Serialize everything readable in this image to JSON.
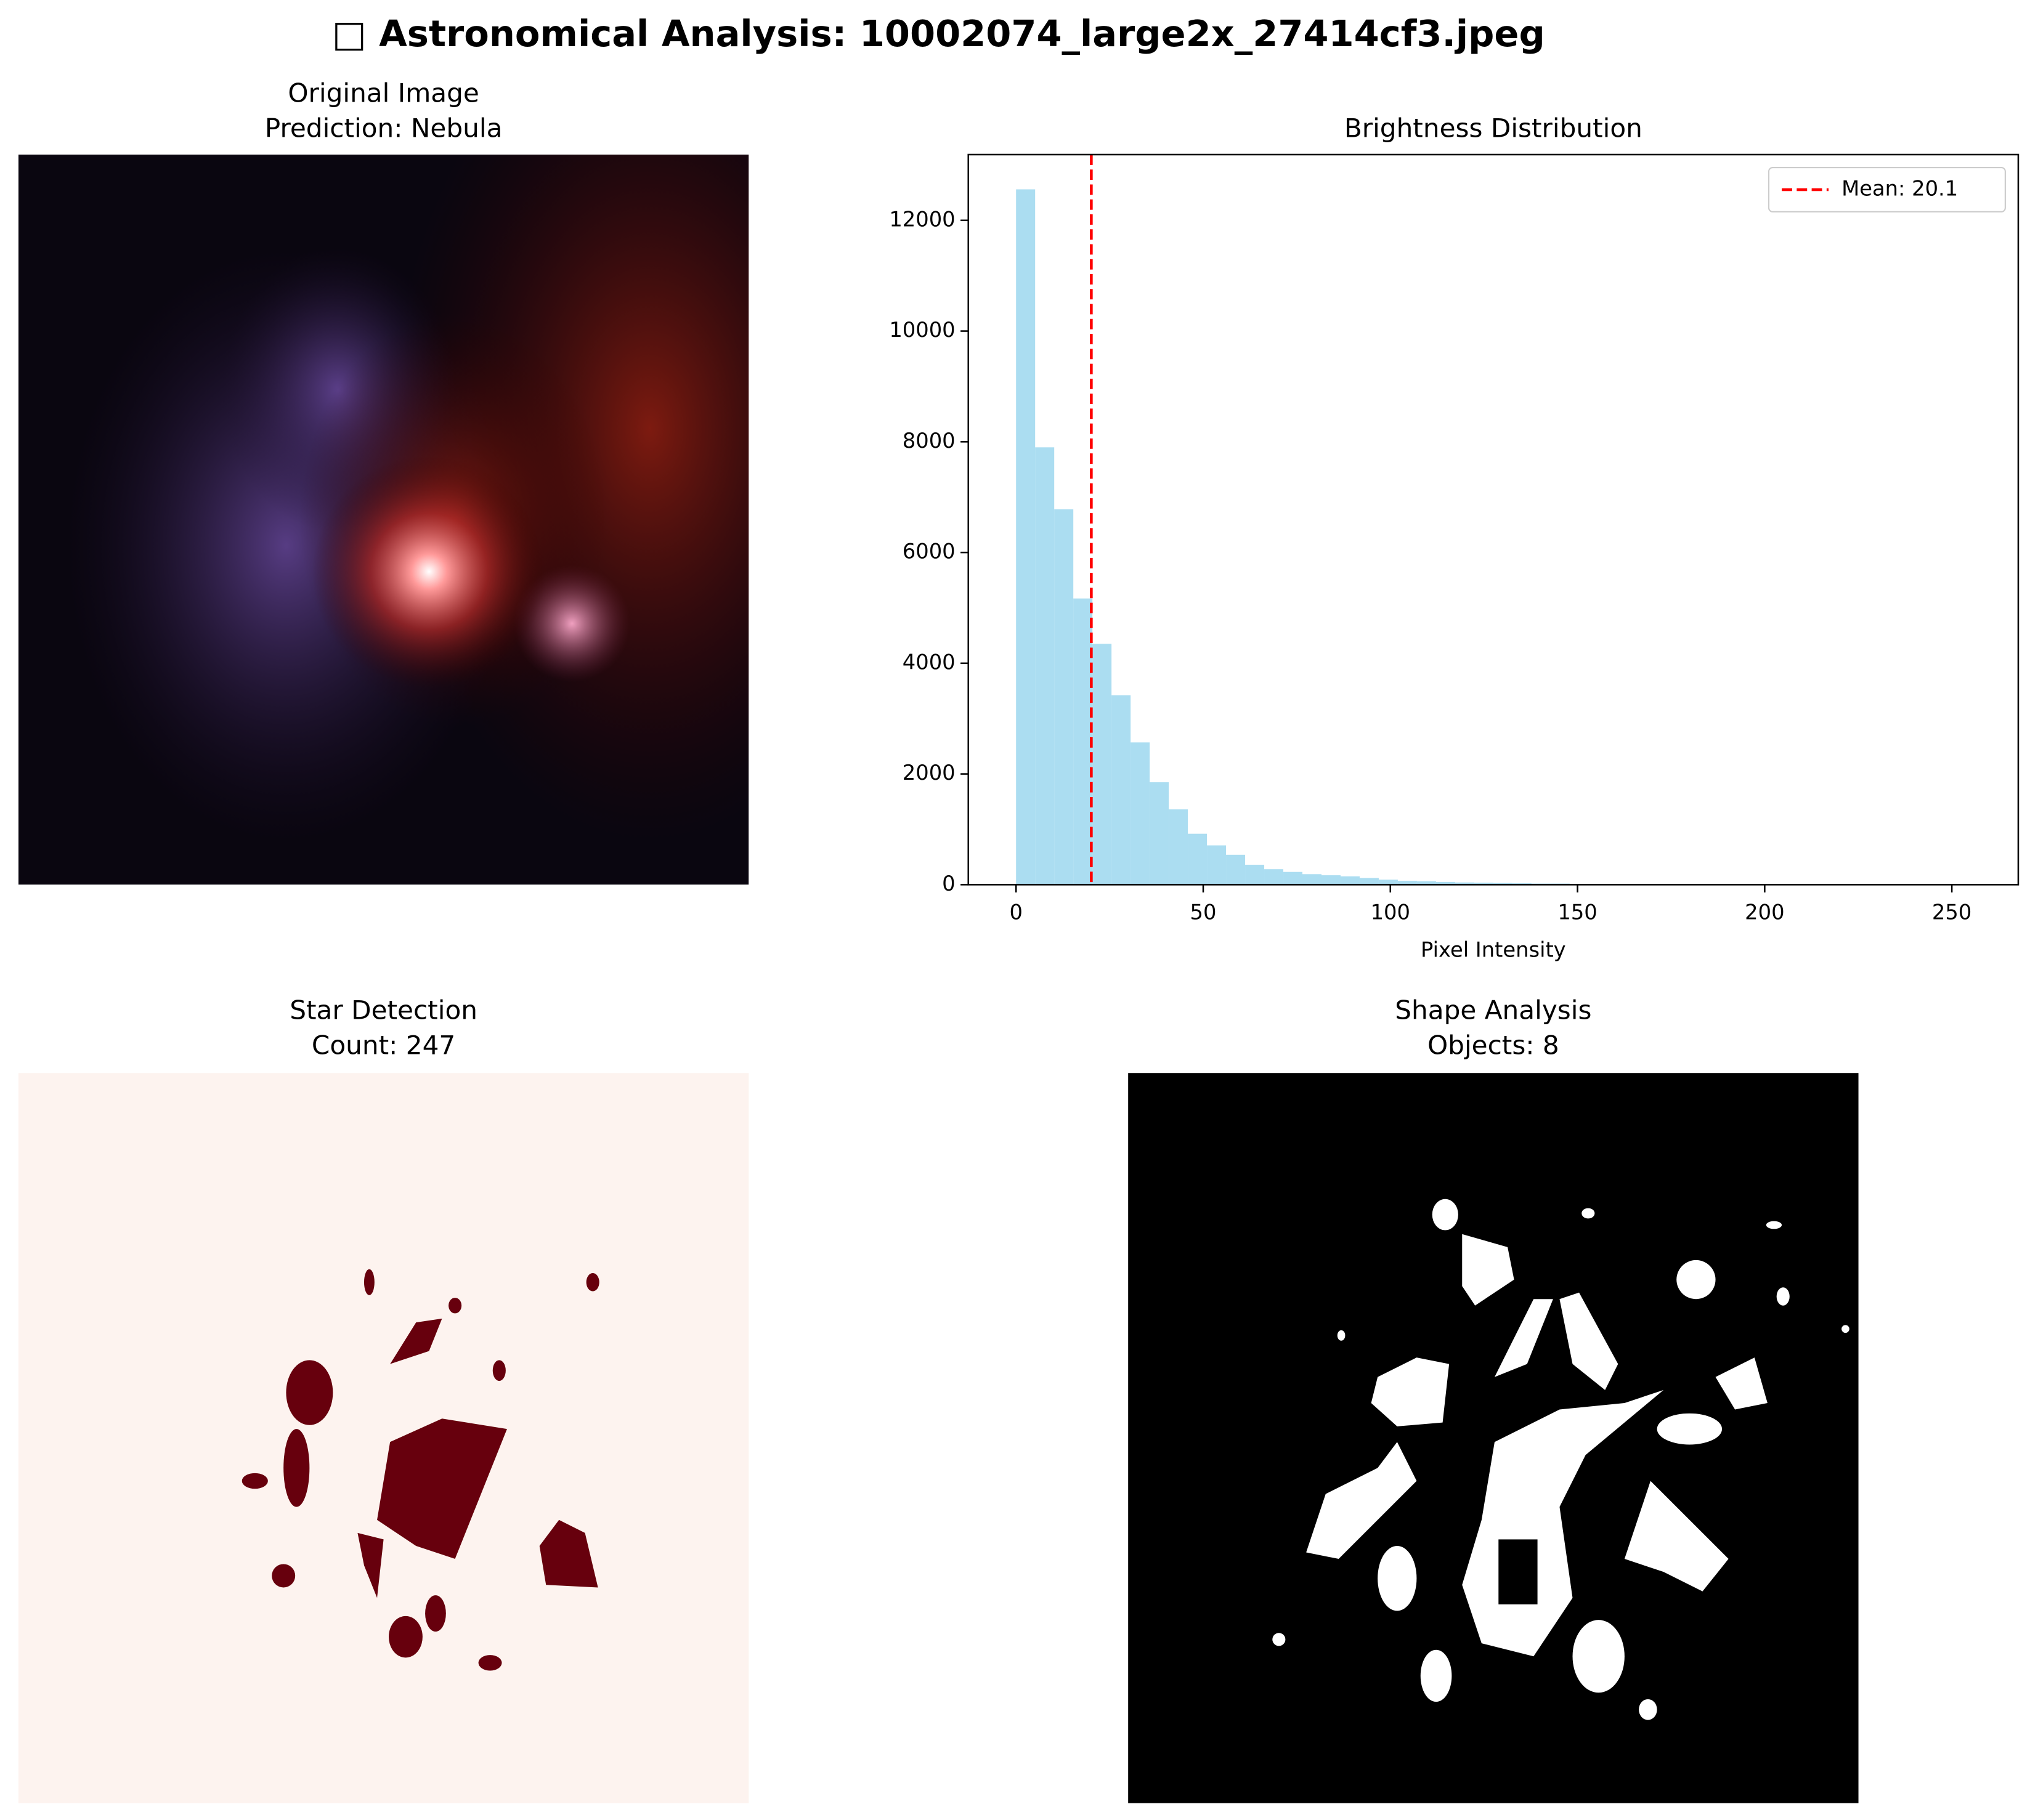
{
  "title": "□ Astronomical Analysis: 10002074_large2x_27414cf3.jpeg",
  "panels": [
    {
      "title": "Original Image",
      "subtitle": "Prediction: Nebula"
    },
    {
      "title": "Star Detection",
      "subtitle": "Count: 247"
    },
    {
      "title": "Shape Analysis",
      "subtitle": "Objects: 8"
    }
  ],
  "chart_data": {
    "type": "histogram",
    "title": "Brightness Distribution",
    "x_label": "Pixel Intensity",
    "bins": [
      0,
      5.1,
      10.2,
      15.3,
      20.4,
      25.5,
      30.6,
      35.7,
      40.8,
      45.9,
      51,
      56.1,
      61.2,
      66.3,
      71.4,
      76.5,
      81.6,
      86.7,
      91.8,
      96.9,
      102,
      107.1,
      112.2,
      117.3,
      122.4,
      127.5,
      132.6,
      137.7,
      142.8,
      147.9,
      153,
      158.1,
      163.2,
      168.3,
      173.4,
      178.5,
      183.6,
      188.7,
      193.8,
      198.9,
      204,
      209.1,
      214.2,
      219.3,
      224.4,
      229.5,
      234.6,
      239.7,
      244.8,
      249.9,
      255
    ],
    "values": [
      12560,
      7900,
      6780,
      5170,
      4350,
      3420,
      2570,
      1850,
      1360,
      920,
      710,
      540,
      360,
      280,
      230,
      190,
      170,
      150,
      120,
      90,
      70,
      60,
      50,
      40,
      35,
      30,
      25,
      20,
      20,
      15,
      15,
      12,
      10,
      10,
      8,
      8,
      6,
      6,
      5,
      5,
      4,
      4,
      3,
      3,
      2,
      2,
      2,
      1,
      1,
      1
    ],
    "color": "#87ceeb",
    "mean_line": {
      "value": 20.1,
      "label": "Mean: 20.1",
      "color": "#ff0000"
    },
    "legend": "upper right",
    "xlim": [
      -12.75,
      267.75
    ],
    "ylim": [
      0,
      13188
    ],
    "xticks": [
      0,
      50,
      100,
      150,
      200,
      250
    ],
    "yticks": [
      0,
      2000,
      4000,
      6000,
      8000,
      10000,
      12000
    ]
  }
}
